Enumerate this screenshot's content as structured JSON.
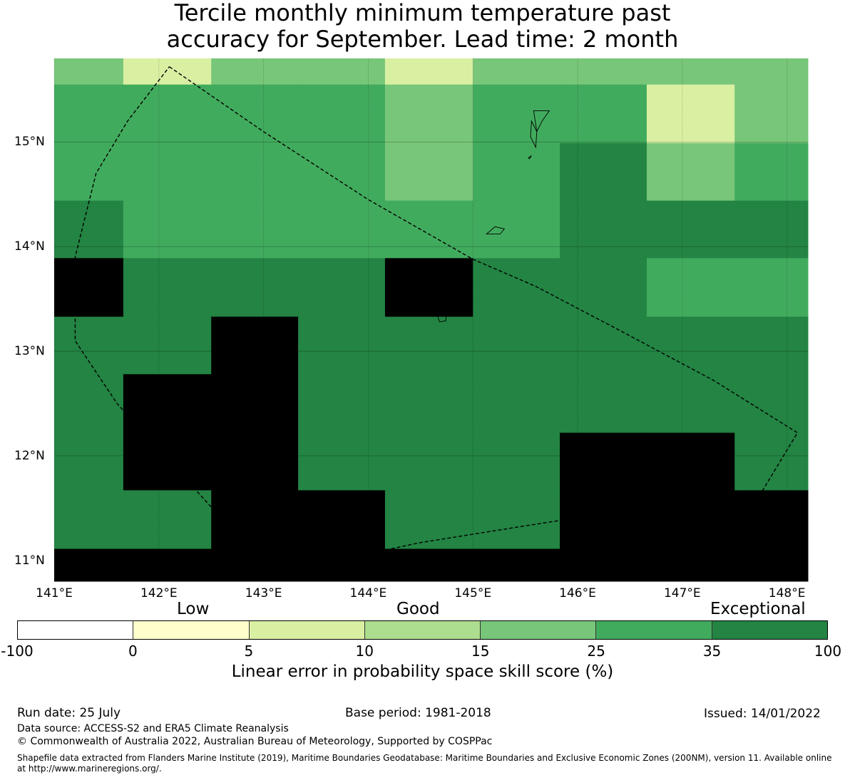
{
  "title": {
    "line1": "Tercile monthly minimum temperature past",
    "line2": "accuracy for September. Lead time: 2 month"
  },
  "map": {
    "lon_range": [
      141.0,
      148.2
    ],
    "lat_range": [
      10.8,
      15.8
    ],
    "lon_edges": [
      141.0,
      141.66,
      142.5,
      143.33,
      144.16,
      145.0,
      145.83,
      146.66,
      147.5,
      148.2
    ],
    "lat_edges": [
      15.8,
      15.55,
      14.99,
      14.44,
      13.89,
      13.33,
      12.78,
      12.22,
      11.67,
      11.11,
      10.8
    ],
    "skill_classes": [
      [
        4,
        2,
        4,
        4,
        2,
        4,
        4,
        4,
        4
      ],
      [
        5,
        5,
        5,
        5,
        4,
        5,
        5,
        2,
        4
      ],
      [
        5,
        5,
        5,
        5,
        4,
        5,
        6,
        4,
        5
      ],
      [
        6,
        5,
        5,
        5,
        5,
        5,
        6,
        6,
        6
      ],
      [
        7,
        6,
        6,
        6,
        7,
        6,
        6,
        5,
        5
      ],
      [
        6,
        6,
        7,
        6,
        6,
        6,
        6,
        6,
        6
      ],
      [
        6,
        7,
        7,
        6,
        6,
        6,
        6,
        6,
        6
      ],
      [
        6,
        7,
        7,
        6,
        6,
        6,
        7,
        7,
        6
      ],
      [
        6,
        6,
        7,
        7,
        6,
        6,
        7,
        7,
        7
      ],
      [
        7,
        7,
        7,
        7,
        7,
        7,
        7,
        7,
        7
      ]
    ],
    "lat_ticks": [
      {
        "value": 15,
        "label": "15°N"
      },
      {
        "value": 14,
        "label": "14°N"
      },
      {
        "value": 13,
        "label": "13°N"
      },
      {
        "value": 12,
        "label": "12°N"
      },
      {
        "value": 11,
        "label": "11°N"
      }
    ],
    "lon_ticks": [
      {
        "value": 141,
        "label": "141°E"
      },
      {
        "value": 142,
        "label": "142°E"
      },
      {
        "value": 143,
        "label": "143°E"
      },
      {
        "value": 144,
        "label": "144°E"
      },
      {
        "value": 145,
        "label": "145°E"
      },
      {
        "value": 146,
        "label": "146°E"
      },
      {
        "value": 147,
        "label": "147°E"
      },
      {
        "value": 148,
        "label": "148°E"
      }
    ],
    "eez_boundary": [
      [
        142.1,
        15.72
      ],
      [
        143.0,
        15.1
      ],
      [
        144.0,
        14.45
      ],
      [
        145.0,
        13.88
      ],
      [
        145.6,
        13.62
      ],
      [
        146.4,
        13.2
      ],
      [
        147.3,
        12.72
      ],
      [
        148.1,
        12.22
      ],
      [
        147.75,
        11.64
      ],
      [
        146.6,
        11.5
      ],
      [
        145.5,
        11.33
      ],
      [
        144.5,
        11.17
      ],
      [
        143.45,
        10.95
      ],
      [
        143.0,
        10.96
      ],
      [
        141.6,
        12.5
      ],
      [
        141.2,
        13.1
      ],
      [
        141.2,
        13.9
      ],
      [
        141.4,
        14.7
      ],
      [
        141.7,
        15.2
      ],
      [
        142.1,
        15.72
      ]
    ],
    "islands": [
      [
        [
          145.58,
          15.3
        ],
        [
          145.73,
          15.3
        ],
        [
          145.66,
          15.2
        ],
        [
          145.61,
          15.1
        ],
        [
          145.58,
          15.3
        ]
      ],
      [
        [
          145.55,
          15.05
        ],
        [
          145.56,
          15.2
        ],
        [
          145.61,
          15.1
        ],
        [
          145.6,
          14.95
        ],
        [
          145.55,
          15.05
        ]
      ],
      [
        [
          145.53,
          14.85
        ],
        [
          145.56,
          14.87
        ],
        [
          145.54,
          14.84
        ],
        [
          145.53,
          14.85
        ]
      ],
      [
        [
          145.13,
          14.12
        ],
        [
          145.21,
          14.19
        ],
        [
          145.3,
          14.17
        ],
        [
          145.26,
          14.12
        ],
        [
          145.13,
          14.12
        ]
      ],
      [
        [
          144.64,
          13.45
        ],
        [
          144.67,
          13.63
        ],
        [
          144.82,
          13.65
        ],
        [
          144.95,
          13.59
        ],
        [
          144.93,
          13.51
        ],
        [
          144.75,
          13.4
        ],
        [
          144.74,
          13.29
        ],
        [
          144.68,
          13.28
        ],
        [
          144.66,
          13.35
        ],
        [
          144.64,
          13.45
        ]
      ]
    ]
  },
  "legend": {
    "categories": {
      "low": "Low",
      "good": "Good",
      "exceptional": "Exceptional"
    },
    "colors": [
      "#ffffff",
      "#ffffcc",
      "#d9f0a3",
      "#addd8e",
      "#78c679",
      "#41ab5d",
      "#238443"
    ],
    "ticks": [
      "-100",
      "0",
      "5",
      "10",
      "15",
      "25",
      "35",
      "100"
    ],
    "label": "Linear error in probability space skill score (%)"
  },
  "footer": {
    "run_date": "Run date: 25 July",
    "base_period": "Base period: 1981-2018",
    "issued": "Issued: 14/01/2022",
    "data_source": "Data source: ACCESS-S2 and ERA5 Climate Reanalysis",
    "copyright": "© Commonwealth of Australia 2022, Australian Bureau of Meteorology, Supported by COSPPac",
    "shapefile": "Shapefile data extracted from Flanders Marine Institute (2019), Maritime Boundaries Geodatabase: Maritime Boundaries and Exclusive Economic Zones (200NM), version 11. Available online at http://www.marineregions.org/."
  }
}
